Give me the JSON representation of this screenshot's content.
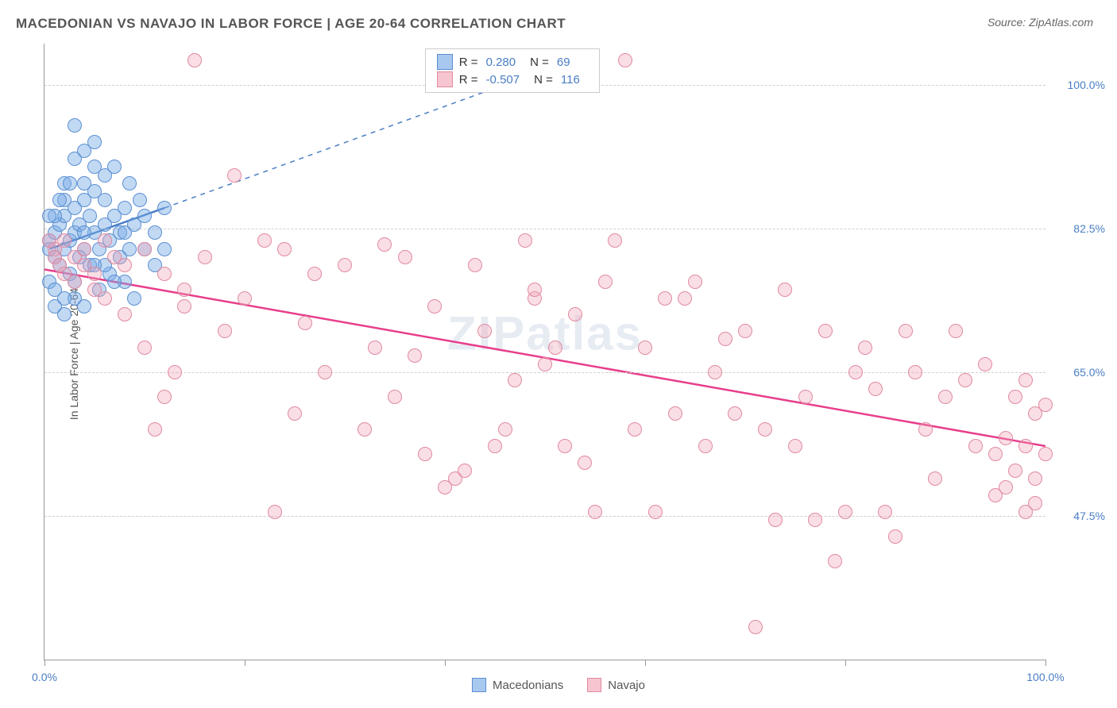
{
  "title": "MACEDONIAN VS NAVAJO IN LABOR FORCE | AGE 20-64 CORRELATION CHART",
  "source": "Source: ZipAtlas.com",
  "watermark": "ZIPatlas",
  "chart": {
    "type": "scatter",
    "background_color": "#ffffff",
    "grid_color": "#d0d0d0",
    "axis_color": "#999999",
    "label_color": "#4a7ec4",
    "title_fontsize": 17,
    "label_fontsize": 14,
    "y_axis_label": "In Labor Force | Age 20-64",
    "xlim": [
      0,
      100
    ],
    "ylim": [
      30,
      105
    ],
    "y_ticks": [
      {
        "value": 47.5,
        "label": "47.5%"
      },
      {
        "value": 65.0,
        "label": "65.0%"
      },
      {
        "value": 82.5,
        "label": "82.5%"
      },
      {
        "value": 100.0,
        "label": "100.0%"
      }
    ],
    "x_ticks": [
      0,
      20,
      40,
      60,
      80,
      100
    ],
    "x_tick_labels": [
      {
        "value": 0,
        "label": "0.0%"
      },
      {
        "value": 100,
        "label": "100.0%"
      }
    ],
    "marker_radius": 9,
    "marker_stroke_width": 1.5,
    "series": [
      {
        "name": "Macedonians",
        "color_fill": "rgba(120, 170, 230, 0.45)",
        "color_stroke": "#5a8fd0",
        "swatch_fill": "#a8c8ef",
        "swatch_border": "#5a8fd0",
        "R": "0.280",
        "N": "69",
        "regression": {
          "x1": 0.5,
          "y1": 80,
          "x2": 12,
          "y2": 85,
          "dash_x1": 12,
          "dash_y1": 85,
          "dash_x2": 55,
          "dash_y2": 104,
          "color": "#4a7ec4",
          "width": 2.5
        },
        "points": [
          [
            0.5,
            80
          ],
          [
            0.5,
            81
          ],
          [
            1,
            82
          ],
          [
            1,
            79
          ],
          [
            1.5,
            78
          ],
          [
            1.5,
            83
          ],
          [
            2,
            80
          ],
          [
            2,
            84
          ],
          [
            2.5,
            81
          ],
          [
            2.5,
            77
          ],
          [
            3,
            82
          ],
          [
            3,
            85
          ],
          [
            3.5,
            79
          ],
          [
            3.5,
            83
          ],
          [
            4,
            80
          ],
          [
            4,
            86
          ],
          [
            4.5,
            78
          ],
          [
            4.5,
            84
          ],
          [
            5,
            82
          ],
          [
            5,
            87
          ],
          [
            5.5,
            80
          ],
          [
            5.5,
            75
          ],
          [
            6,
            83
          ],
          [
            6,
            89
          ],
          [
            6.5,
            81
          ],
          [
            6.5,
            77
          ],
          [
            7,
            84
          ],
          [
            7,
            90
          ],
          [
            7.5,
            79
          ],
          [
            7.5,
            82
          ],
          [
            8,
            85
          ],
          [
            8,
            76
          ],
          [
            8.5,
            80
          ],
          [
            8.5,
            88
          ],
          [
            9,
            83
          ],
          [
            9,
            74
          ],
          [
            9.5,
            86
          ],
          [
            1,
            73
          ],
          [
            2,
            72
          ],
          [
            3,
            74
          ],
          [
            4,
            73
          ],
          [
            2,
            88
          ],
          [
            3,
            91
          ],
          [
            4,
            92
          ],
          [
            5,
            93
          ],
          [
            6,
            78
          ],
          [
            7,
            76
          ],
          [
            8,
            82
          ],
          [
            10,
            80
          ],
          [
            10,
            84
          ],
          [
            11,
            82
          ],
          [
            11,
            78
          ],
          [
            12,
            85
          ],
          [
            12,
            80
          ],
          [
            3,
            95
          ],
          [
            5,
            90
          ],
          [
            2,
            86
          ],
          [
            1,
            84
          ],
          [
            4,
            88
          ],
          [
            6,
            86
          ],
          [
            0.5,
            76
          ],
          [
            1,
            75
          ],
          [
            2,
            74
          ],
          [
            3,
            76
          ],
          [
            0.5,
            84
          ],
          [
            1.5,
            86
          ],
          [
            2.5,
            88
          ],
          [
            4,
            82
          ],
          [
            5,
            78
          ]
        ]
      },
      {
        "name": "Navajo",
        "color_fill": "rgba(240, 160, 180, 0.35)",
        "color_stroke": "#e08aa0",
        "swatch_fill": "#f7c5d0",
        "swatch_border": "#e08aa0",
        "R": "-0.507",
        "N": "116",
        "regression": {
          "x1": 0,
          "y1": 77.5,
          "x2": 100,
          "y2": 56,
          "color": "#e83e8c",
          "width": 2.5
        },
        "points": [
          [
            0.5,
            81
          ],
          [
            1,
            80
          ],
          [
            1,
            79
          ],
          [
            1.5,
            78
          ],
          [
            2,
            81
          ],
          [
            2,
            77
          ],
          [
            3,
            79
          ],
          [
            3,
            76
          ],
          [
            4,
            78
          ],
          [
            5,
            77
          ],
          [
            5,
            75
          ],
          [
            6,
            74
          ],
          [
            7,
            79
          ],
          [
            8,
            78
          ],
          [
            4,
            80
          ],
          [
            6,
            81
          ],
          [
            15,
            103
          ],
          [
            19,
            89
          ],
          [
            22,
            81
          ],
          [
            24,
            80
          ],
          [
            26,
            71
          ],
          [
            30,
            78
          ],
          [
            33,
            68
          ],
          [
            34,
            80.5
          ],
          [
            36,
            79
          ],
          [
            37,
            67
          ],
          [
            38,
            55
          ],
          [
            39,
            73
          ],
          [
            40,
            51
          ],
          [
            41,
            52
          ],
          [
            42,
            53
          ],
          [
            43,
            78
          ],
          [
            45,
            56
          ],
          [
            47,
            64
          ],
          [
            48,
            81
          ],
          [
            49,
            74
          ],
          [
            49,
            75
          ],
          [
            51,
            68
          ],
          [
            52,
            56
          ],
          [
            54,
            54
          ],
          [
            55,
            48
          ],
          [
            56,
            76
          ],
          [
            57,
            81
          ],
          [
            58,
            103
          ],
          [
            60,
            68
          ],
          [
            62,
            74
          ],
          [
            63,
            60
          ],
          [
            64,
            74
          ],
          [
            65,
            76
          ],
          [
            66,
            56
          ],
          [
            67,
            65
          ],
          [
            68,
            69
          ],
          [
            70,
            70
          ],
          [
            71,
            34
          ],
          [
            72,
            58
          ],
          [
            73,
            47
          ],
          [
            74,
            75
          ],
          [
            75,
            56
          ],
          [
            76,
            62
          ],
          [
            77,
            47
          ],
          [
            78,
            70
          ],
          [
            79,
            42
          ],
          [
            80,
            48
          ],
          [
            81,
            65
          ],
          [
            82,
            68
          ],
          [
            83,
            63
          ],
          [
            84,
            48
          ],
          [
            85,
            45
          ],
          [
            86,
            70
          ],
          [
            87,
            65
          ],
          [
            88,
            58
          ],
          [
            89,
            52
          ],
          [
            90,
            62
          ],
          [
            91,
            70
          ],
          [
            92,
            64
          ],
          [
            93,
            56
          ],
          [
            94,
            66
          ],
          [
            95,
            50
          ],
          [
            95,
            55
          ],
          [
            96,
            57
          ],
          [
            96,
            51
          ],
          [
            97,
            62
          ],
          [
            97,
            53
          ],
          [
            98,
            48
          ],
          [
            98,
            56
          ],
          [
            98,
            64
          ],
          [
            99,
            60
          ],
          [
            99,
            49
          ],
          [
            99,
            52
          ],
          [
            100,
            55
          ],
          [
            100,
            61
          ],
          [
            8,
            72
          ],
          [
            10,
            68
          ],
          [
            12,
            62
          ],
          [
            14,
            75
          ],
          [
            16,
            79
          ],
          [
            18,
            70
          ],
          [
            20,
            74
          ],
          [
            10,
            80
          ],
          [
            12,
            77
          ],
          [
            14,
            73
          ],
          [
            25,
            60
          ],
          [
            28,
            65
          ],
          [
            32,
            58
          ],
          [
            35,
            62
          ],
          [
            44,
            70
          ],
          [
            46,
            58
          ],
          [
            50,
            66
          ],
          [
            53,
            72
          ],
          [
            59,
            58
          ],
          [
            61,
            48
          ],
          [
            69,
            60
          ],
          [
            11,
            58
          ],
          [
            13,
            65
          ],
          [
            23,
            48
          ],
          [
            27,
            77
          ]
        ]
      }
    ]
  },
  "legend": {
    "r_label": "R =",
    "n_label": "N ="
  },
  "bottom_legend": {
    "items": [
      {
        "label": "Macedonians",
        "fill": "#a8c8ef",
        "border": "#5a8fd0"
      },
      {
        "label": "Navajo",
        "fill": "#f7c5d0",
        "border": "#e08aa0"
      }
    ]
  }
}
